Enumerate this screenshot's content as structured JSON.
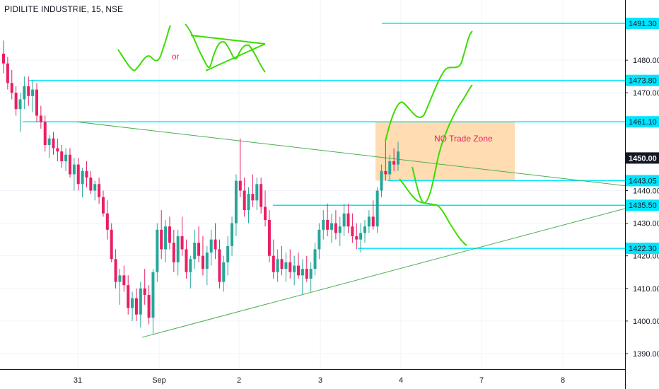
{
  "header": {
    "symbol_title": "PIDILITE INDUSTRIE, 15, NSE"
  },
  "annotations": {
    "or_label": "or",
    "no_trade_zone_label": "NO Trade Zone"
  },
  "colors": {
    "up": "#26a69a",
    "down": "#e91e63",
    "level_line": "#00e5ff",
    "trend_line": "#4caf50",
    "sketch": "#3ddc00",
    "zone_fill": "#ffd8a8",
    "zone_text": "#e91e63"
  },
  "chart_data": {
    "type": "candlestick",
    "title": "PIDILITE INDUSTRIE, 15, NSE",
    "ylim": [
      1385,
      1495
    ],
    "y_ticks": [
      {
        "value": 1390,
        "label": "1390.00"
      },
      {
        "value": 1400,
        "label": "1400.00"
      },
      {
        "value": 1410,
        "label": "1410.00"
      },
      {
        "value": 1420,
        "label": "1420.00"
      },
      {
        "value": 1430,
        "label": "1430.00"
      },
      {
        "value": 1440,
        "label": "1440.00"
      },
      {
        "value": 1470,
        "label": "1470.00"
      },
      {
        "value": 1480,
        "label": "1480.00"
      }
    ],
    "x_ticks": [
      "31",
      "Sep",
      "2",
      "3",
      "4",
      "7",
      "8"
    ],
    "price_badges": [
      {
        "value": 1491.3,
        "label": "1491.30",
        "style": "level"
      },
      {
        "value": 1473.8,
        "label": "1473.80",
        "style": "level"
      },
      {
        "value": 1461.1,
        "label": "1461.10",
        "style": "level"
      },
      {
        "value": 1450.0,
        "label": "1450.00",
        "style": "current"
      },
      {
        "value": 1443.05,
        "label": "1443.05",
        "style": "level"
      },
      {
        "value": 1435.5,
        "label": "1435.50",
        "style": "level"
      },
      {
        "value": 1422.3,
        "label": "1422.30",
        "style": "level"
      }
    ],
    "horizontal_levels": [
      1491.3,
      1473.8,
      1461.1,
      1443.05,
      1435.5,
      1422.3
    ],
    "no_trade_zone": {
      "high": 1461.1,
      "low": 1443.05
    },
    "trendlines": [
      {
        "name": "descending",
        "from": 1461.1,
        "to": 1441.5
      },
      {
        "name": "ascending",
        "from": 1395.0,
        "to": 1434.5
      }
    ],
    "candles": [
      [
        1482,
        1486,
        1476,
        1479
      ],
      [
        1479,
        1481,
        1471,
        1473
      ],
      [
        1473,
        1477,
        1468,
        1470
      ],
      [
        1470,
        1472,
        1463,
        1465
      ],
      [
        1465,
        1470,
        1458,
        1468
      ],
      [
        1468,
        1475,
        1465,
        1472
      ],
      [
        1472,
        1475,
        1466,
        1469
      ],
      [
        1469,
        1474,
        1464,
        1471
      ],
      [
        1471,
        1473,
        1461,
        1463
      ],
      [
        1463,
        1466,
        1459,
        1461
      ],
      [
        1461,
        1463,
        1452,
        1454
      ],
      [
        1454,
        1457,
        1450,
        1456
      ],
      [
        1456,
        1458,
        1451,
        1453
      ],
      [
        1453,
        1456,
        1449,
        1452
      ],
      [
        1452,
        1454,
        1447,
        1449
      ],
      [
        1449,
        1453,
        1446,
        1451
      ],
      [
        1451,
        1453,
        1444,
        1445
      ],
      [
        1445,
        1450,
        1440,
        1448
      ],
      [
        1448,
        1450,
        1440,
        1442
      ],
      [
        1442,
        1447,
        1438,
        1446
      ],
      [
        1446,
        1449,
        1441,
        1444
      ],
      [
        1444,
        1446,
        1439,
        1440
      ],
      [
        1440,
        1443,
        1437,
        1442
      ],
      [
        1442,
        1444,
        1436,
        1438
      ],
      [
        1438,
        1440,
        1432,
        1433
      ],
      [
        1433,
        1437,
        1425,
        1428
      ],
      [
        1428,
        1430,
        1418,
        1419
      ],
      [
        1419,
        1422,
        1410,
        1412
      ],
      [
        1412,
        1416,
        1405,
        1414
      ],
      [
        1414,
        1417,
        1409,
        1411
      ],
      [
        1411,
        1414,
        1402,
        1404
      ],
      [
        1404,
        1409,
        1400,
        1407
      ],
      [
        1407,
        1410,
        1400,
        1402
      ],
      [
        1402,
        1412,
        1398,
        1410
      ],
      [
        1410,
        1416,
        1405,
        1408
      ],
      [
        1408,
        1411,
        1399,
        1401
      ],
      [
        1401,
        1416,
        1396,
        1415
      ],
      [
        1415,
        1430,
        1412,
        1428
      ],
      [
        1428,
        1434,
        1419,
        1422
      ],
      [
        1422,
        1431,
        1418,
        1429
      ],
      [
        1429,
        1432,
        1422,
        1424
      ],
      [
        1424,
        1428,
        1415,
        1418
      ],
      [
        1418,
        1428,
        1414,
        1426
      ],
      [
        1426,
        1432,
        1420,
        1422
      ],
      [
        1422,
        1425,
        1413,
        1415
      ],
      [
        1415,
        1420,
        1410,
        1419
      ],
      [
        1419,
        1428,
        1416,
        1424
      ],
      [
        1424,
        1429,
        1418,
        1420
      ],
      [
        1420,
        1426,
        1414,
        1416
      ],
      [
        1416,
        1423,
        1411,
        1421
      ],
      [
        1421,
        1428,
        1417,
        1425
      ],
      [
        1425,
        1430,
        1419,
        1422
      ],
      [
        1422,
        1425,
        1410,
        1412
      ],
      [
        1412,
        1420,
        1409,
        1418
      ],
      [
        1418,
        1426,
        1414,
        1423
      ],
      [
        1423,
        1432,
        1420,
        1430
      ],
      [
        1430,
        1445,
        1426,
        1443
      ],
      [
        1443,
        1456,
        1438,
        1440
      ],
      [
        1440,
        1444,
        1432,
        1434
      ],
      [
        1434,
        1441,
        1430,
        1439
      ],
      [
        1439,
        1445,
        1435,
        1437
      ],
      [
        1437,
        1444,
        1434,
        1442
      ],
      [
        1442,
        1444,
        1433,
        1435
      ],
      [
        1435,
        1440,
        1429,
        1431
      ],
      [
        1431,
        1434,
        1418,
        1420
      ],
      [
        1420,
        1425,
        1413,
        1415
      ],
      [
        1415,
        1422,
        1412,
        1419
      ],
      [
        1419,
        1423,
        1414,
        1416
      ],
      [
        1416,
        1421,
        1412,
        1418
      ],
      [
        1418,
        1422,
        1413,
        1415
      ],
      [
        1415,
        1420,
        1411,
        1417
      ],
      [
        1417,
        1421,
        1413,
        1414
      ],
      [
        1414,
        1419,
        1408,
        1416
      ],
      [
        1416,
        1420,
        1412,
        1413
      ],
      [
        1413,
        1418,
        1409,
        1416
      ],
      [
        1416,
        1424,
        1414,
        1422
      ],
      [
        1422,
        1430,
        1419,
        1428
      ],
      [
        1428,
        1434,
        1425,
        1431
      ],
      [
        1431,
        1436,
        1426,
        1428
      ],
      [
        1428,
        1433,
        1424,
        1430
      ],
      [
        1430,
        1434,
        1425,
        1427
      ],
      [
        1427,
        1432,
        1423,
        1429
      ],
      [
        1429,
        1436,
        1426,
        1433
      ],
      [
        1433,
        1436,
        1427,
        1429
      ],
      [
        1429,
        1433,
        1424,
        1426
      ],
      [
        1426,
        1430,
        1422,
        1425
      ],
      [
        1425,
        1430,
        1421,
        1427
      ],
      [
        1427,
        1431,
        1424,
        1429
      ],
      [
        1429,
        1434,
        1427,
        1432
      ],
      [
        1432,
        1437,
        1428,
        1429
      ],
      [
        1429,
        1441,
        1427,
        1440
      ],
      [
        1440,
        1448,
        1438,
        1446
      ],
      [
        1446,
        1456,
        1443,
        1445
      ],
      [
        1445,
        1451,
        1443,
        1449
      ],
      [
        1449,
        1453,
        1446,
        1448
      ],
      [
        1448,
        1455,
        1446,
        1452
      ]
    ]
  }
}
